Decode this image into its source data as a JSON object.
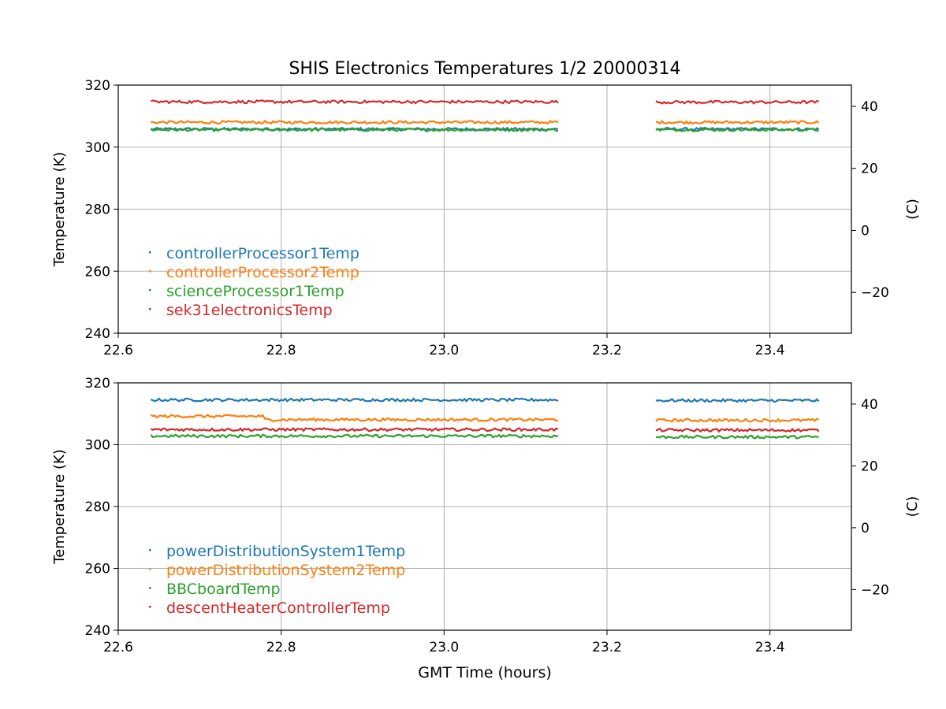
{
  "figure": {
    "title": "SHIS Electronics Temperatures 1/2 20000314",
    "xlabel": "GMT Time (hours)"
  },
  "chart_data": [
    {
      "type": "scatter",
      "title": "SHIS Electronics Temperatures 1/2 20000314",
      "xlabel": "",
      "ylabel": "Temperature (K)",
      "ylabel_right": "(C)",
      "xlim": [
        22.6,
        23.5
      ],
      "ylim": [
        240,
        320
      ],
      "ylim_right": [
        -33.15,
        46.85
      ],
      "xticks": [
        "22.6",
        "22.8",
        "23.0",
        "23.2",
        "23.4"
      ],
      "yticks": [
        "240",
        "260",
        "280",
        "300",
        "320"
      ],
      "yticks_right": [
        "−20",
        "0",
        "20",
        "40"
      ],
      "grid": true,
      "legend_position": "lower-left",
      "segments": [
        [
          22.64,
          23.14
        ],
        [
          23.26,
          23.46
        ]
      ],
      "series": [
        {
          "name": "controllerProcessor1Temp",
          "color": "#1f77b4",
          "values": [
            305.8,
            305.8
          ]
        },
        {
          "name": "controllerProcessor2Temp",
          "color": "#ff7f0e",
          "values": [
            308.0,
            308.0
          ]
        },
        {
          "name": "scienceProcessor1Temp",
          "color": "#2ca02c",
          "values": [
            305.6,
            305.6
          ]
        },
        {
          "name": "sek31electronicsTemp",
          "color": "#d62728",
          "values": [
            314.6,
            314.5
          ]
        }
      ]
    },
    {
      "type": "scatter",
      "xlabel": "GMT Time (hours)",
      "ylabel": "Temperature (K)",
      "ylabel_right": "(C)",
      "xlim": [
        22.6,
        23.5
      ],
      "ylim": [
        240,
        320
      ],
      "ylim_right": [
        -33.15,
        46.85
      ],
      "xticks": [
        "22.6",
        "22.8",
        "23.0",
        "23.2",
        "23.4"
      ],
      "yticks": [
        "240",
        "260",
        "280",
        "300",
        "320"
      ],
      "yticks_right": [
        "−20",
        "0",
        "20",
        "40"
      ],
      "grid": true,
      "legend_position": "lower-left",
      "segments": [
        [
          22.64,
          23.14
        ],
        [
          23.26,
          23.46
        ]
      ],
      "series": [
        {
          "name": "powerDistributionSystem1Temp",
          "color": "#1f77b4",
          "values": [
            314.5,
            314.3
          ]
        },
        {
          "name": "powerDistributionSystem2Temp",
          "color": "#ff7f0e",
          "values": [
            308.9,
            307.9
          ]
        },
        {
          "name": "BBCboardTemp",
          "color": "#2ca02c",
          "values": [
            302.8,
            302.5
          ]
        },
        {
          "name": "descentHeaterControllerTemp",
          "color": "#d62728",
          "values": [
            304.9,
            304.7
          ]
        }
      ]
    }
  ]
}
